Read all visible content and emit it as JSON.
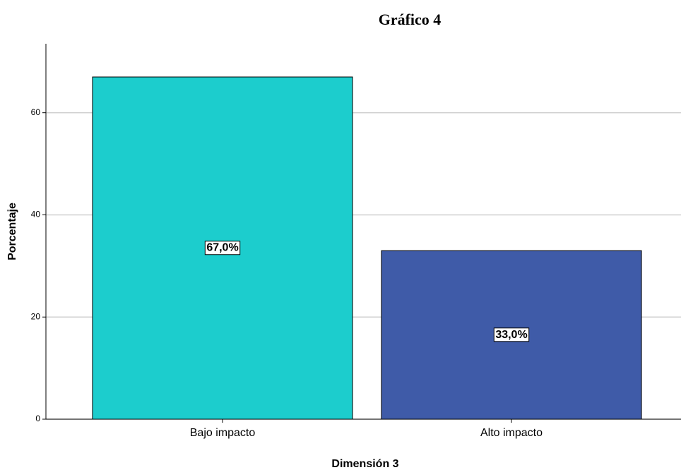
{
  "chart_data": {
    "type": "bar",
    "title": "Gráfico 4",
    "x_label": "Dimensión 3",
    "y_label": "Porcentaje",
    "categories": [
      "Bajo impacto",
      "Alto impacto"
    ],
    "values": [
      67.0,
      33.0
    ],
    "value_labels": [
      "67,0%",
      "33,0%"
    ],
    "colors": [
      "#1ccdcd",
      "#3f5ba8"
    ],
    "ylim": [
      0,
      73.5
    ],
    "yticks": [
      0,
      20,
      40,
      60
    ],
    "grid": true
  }
}
